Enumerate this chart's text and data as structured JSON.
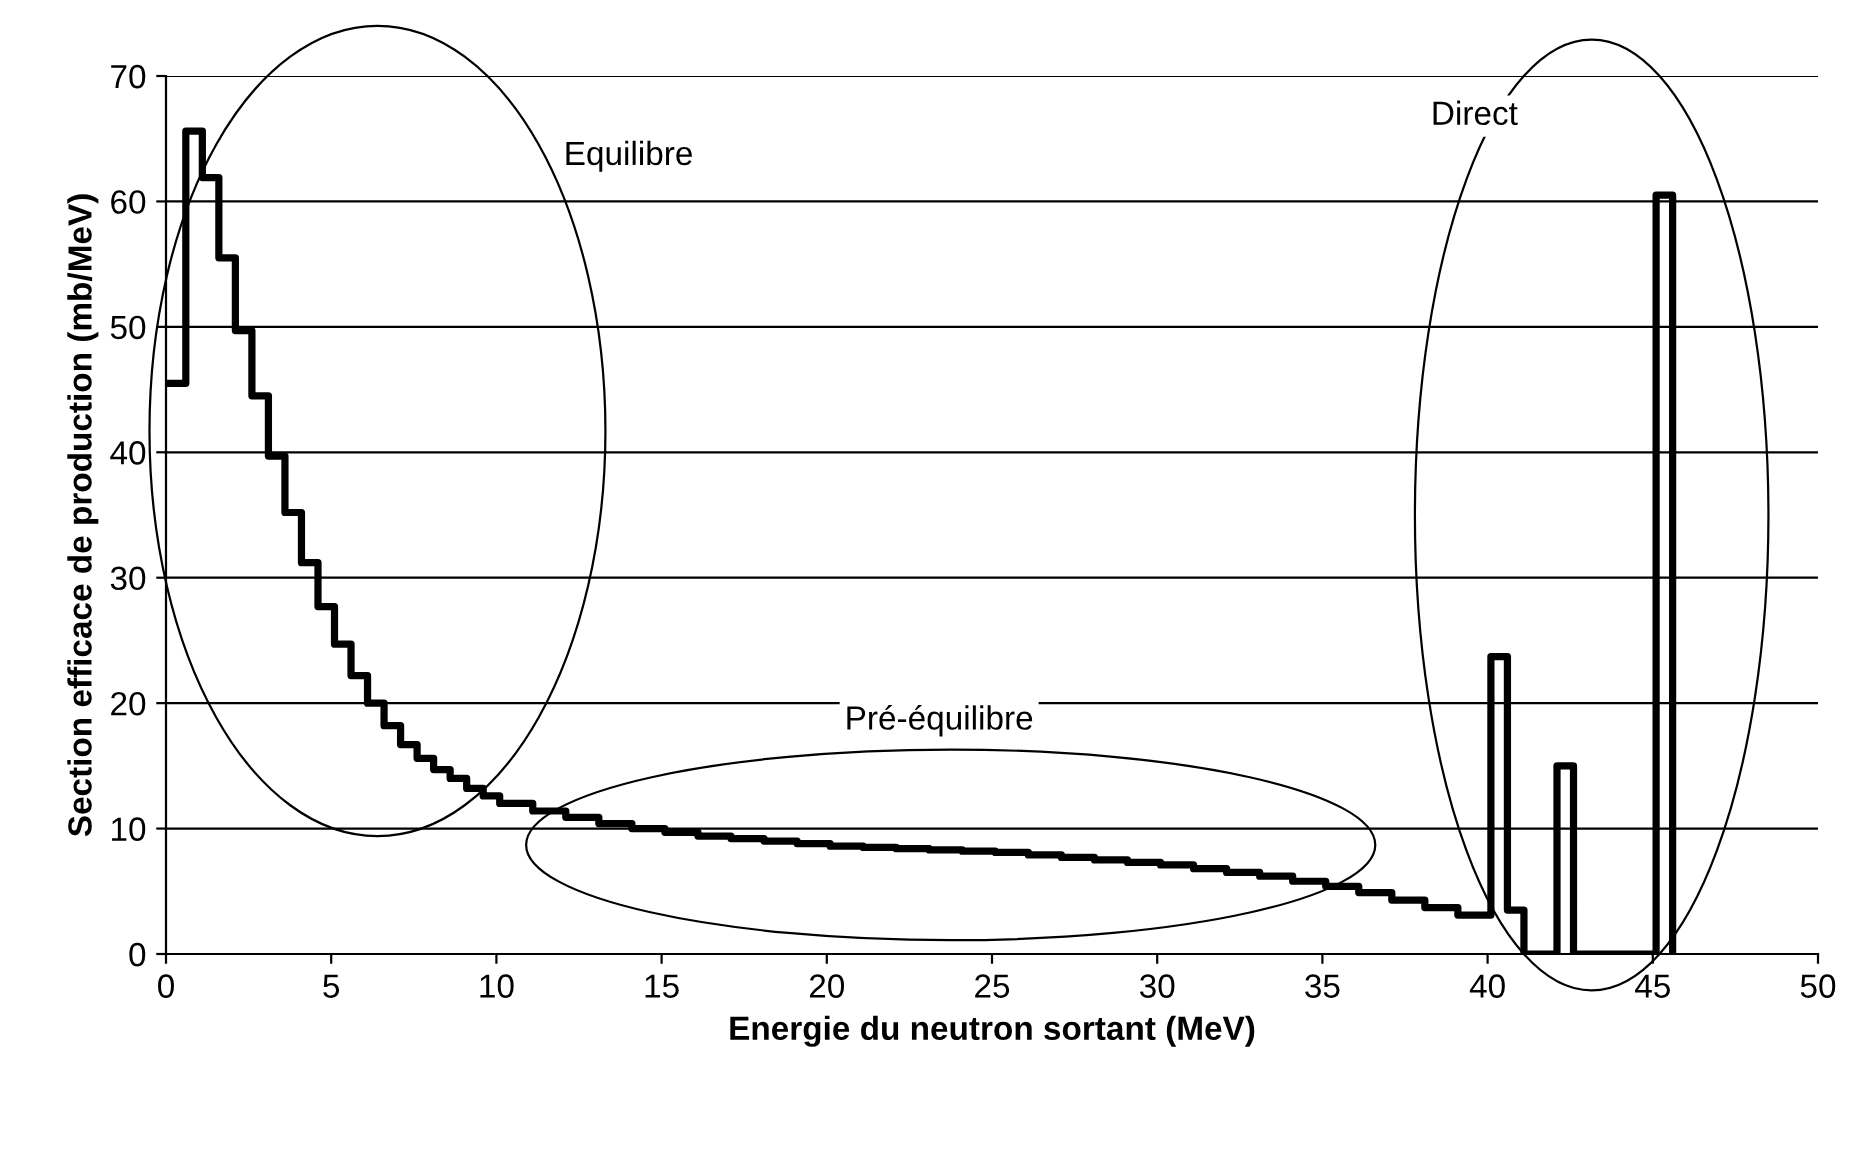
{
  "chart_data": {
    "type": "step",
    "xlabel": "Energie du neutron sortant (MeV)",
    "ylabel": "Section efficace de production (mb/MeV)",
    "annotations": [
      "Equilibre",
      "Pré-équilibre",
      "Direct"
    ],
    "series": [
      {
        "color": "#000000",
        "x": [
          0,
          0.6,
          1.1,
          1.6,
          2.1,
          2.6,
          3.1,
          3.6,
          4.1,
          4.6,
          5.1,
          5.6,
          6.1,
          6.6,
          7.1,
          7.6,
          8.1,
          8.6,
          9.1,
          9.6,
          10.1,
          11.1,
          12.1,
          13.1,
          14.1,
          15.1,
          16.1,
          17.1,
          18.1,
          19.1,
          20.1,
          21.1,
          22.1,
          23.1,
          24.1,
          25.1,
          26.1,
          27.1,
          28.1,
          29.1,
          30.1,
          31.1,
          32.1,
          33.1,
          34.1,
          35.1,
          36.1,
          37.1,
          38.1,
          39.1,
          40.1,
          40.6,
          41.1,
          42.1,
          42.6,
          45.1,
          45.6
        ],
        "values": [
          45.5,
          65.6,
          61.9,
          55.5,
          49.7,
          44.5,
          39.7,
          35.2,
          31.2,
          27.7,
          24.7,
          22.2,
          20,
          18.2,
          16.7,
          15.6,
          14.7,
          14,
          13.2,
          12.6,
          12,
          11.4,
          10.9,
          10.4,
          10,
          9.7,
          9.4,
          9.2,
          9,
          8.8,
          8.6,
          8.5,
          8.4,
          8.3,
          8.2,
          8.1,
          7.9,
          7.7,
          7.5,
          7.3,
          7.1,
          6.8,
          6.5,
          6.2,
          5.8,
          5.4,
          4.9,
          4.3,
          3.7,
          3.1,
          23.7,
          3.5,
          0,
          15,
          0,
          60.5,
          0
        ]
      }
    ],
    "xlim": [
      0,
      50
    ],
    "xticks": [
      0,
      5,
      10,
      15,
      20,
      25,
      30,
      35,
      40,
      45,
      50
    ],
    "ylim": [
      0,
      70
    ],
    "yticks": [
      0,
      10,
      20,
      30,
      40,
      50,
      60,
      70
    ],
    "grid": "y",
    "legend": false
  }
}
